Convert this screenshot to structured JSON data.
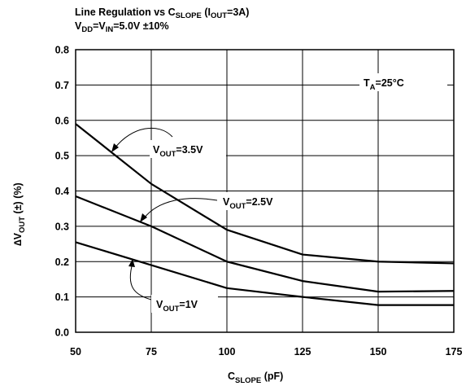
{
  "chart_data": {
    "type": "line",
    "title_parts": [
      "Line Regulation vs C",
      "SLOPE",
      " (I",
      "OUT",
      "=3A)"
    ],
    "subtitle_parts": [
      "V",
      "DD",
      "=V",
      "IN",
      "=5.0V ±10%"
    ],
    "xlabel_parts": [
      "C",
      "SLOPE",
      " (pF)"
    ],
    "ylabel_parts": [
      "∆V",
      "OUT",
      " (±) (%)"
    ],
    "condition_parts": [
      "T",
      "A",
      "=25°C"
    ],
    "x": [
      50,
      75,
      100,
      125,
      150,
      175
    ],
    "xlim": [
      50,
      175
    ],
    "ylim": [
      0,
      0.8
    ],
    "xticks": [
      "50",
      "75",
      "100",
      "125",
      "150",
      "175"
    ],
    "yticks": [
      "0.0",
      "0.1",
      "0.2",
      "0.3",
      "0.4",
      "0.5",
      "0.6",
      "0.7",
      "0.8"
    ],
    "grid": true,
    "series": [
      {
        "name_parts": [
          "V",
          "OUT",
          "=3.5V"
        ],
        "values": [
          0.59,
          0.42,
          0.29,
          0.22,
          0.2,
          0.195
        ]
      },
      {
        "name_parts": [
          "V",
          "OUT",
          "=2.5V"
        ],
        "values": [
          0.385,
          0.3,
          0.2,
          0.145,
          0.115,
          0.117
        ]
      },
      {
        "name_parts": [
          "V",
          "OUT",
          "=1V"
        ],
        "values": [
          0.255,
          0.19,
          0.125,
          0.1,
          0.077,
          0.077
        ]
      }
    ]
  }
}
